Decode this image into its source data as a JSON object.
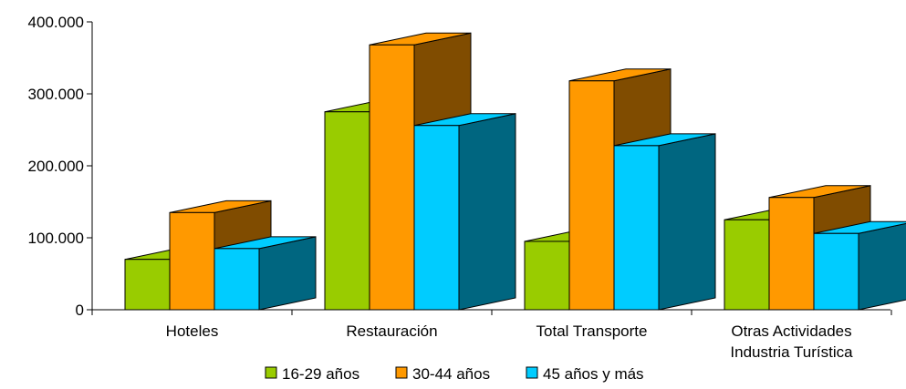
{
  "chart_data": {
    "type": "bar",
    "style": "3d-clustered",
    "categories": [
      [
        "Hoteles"
      ],
      [
        "Restauración"
      ],
      [
        "Total Transporte"
      ],
      [
        "Otras Actividades",
        "Industria Turística"
      ]
    ],
    "series": [
      {
        "name": "16-29 años",
        "values": [
          70000,
          275000,
          95000,
          125000
        ],
        "color": "#99CC00",
        "side_color": "#5C7A00"
      },
      {
        "name": "30-44 años",
        "values": [
          135000,
          368000,
          318000,
          156000
        ],
        "color": "#FF9900",
        "side_color": "#804C00"
      },
      {
        "name": "45 años y más",
        "values": [
          85000,
          256000,
          228000,
          106000
        ],
        "color": "#00CCFF",
        "side_color": "#006680"
      }
    ],
    "y_ticks": [
      "0",
      "100.000",
      "200.000",
      "300.000",
      "400.000"
    ],
    "ylim": [
      0,
      400000
    ],
    "legend_position": "bottom",
    "grid": false
  }
}
